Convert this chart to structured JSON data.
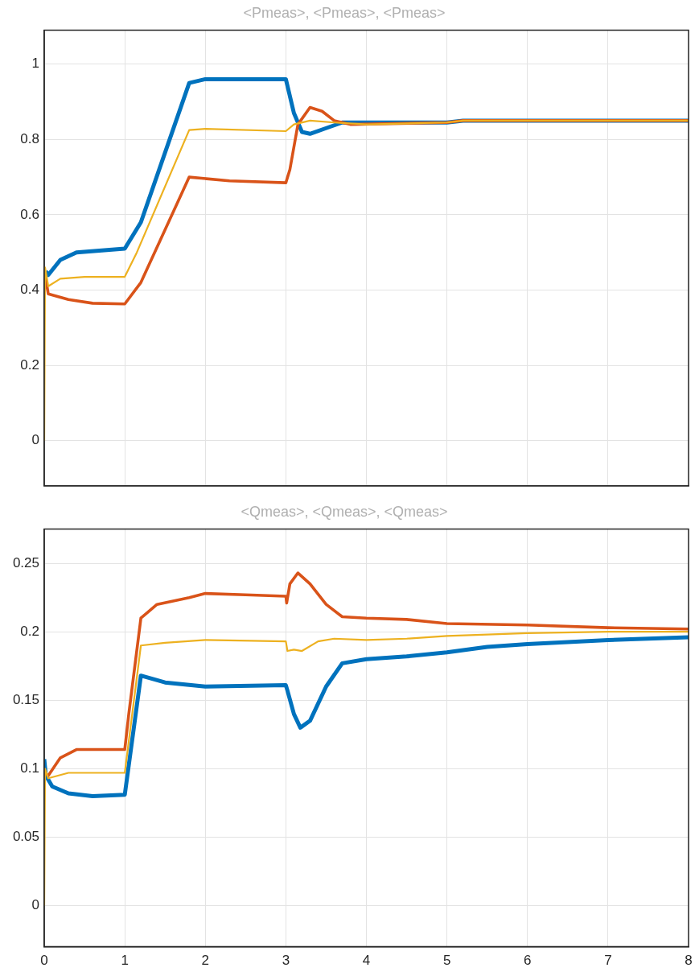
{
  "chart_data": [
    {
      "type": "line",
      "title": "<Pmeas>, <Pmeas>, <Pmeas>",
      "xlim": [
        0,
        8
      ],
      "xticks": [
        0,
        1,
        2,
        3,
        4,
        5,
        6,
        7,
        8
      ],
      "ylim": [
        -0.12,
        1.09
      ],
      "yticks": [
        0,
        0.2,
        0.4,
        0.6,
        0.8,
        1
      ],
      "grid": true,
      "legend": false,
      "tick_labels": "y",
      "marker": "none",
      "series": [
        {
          "color": "#0072bd",
          "x": [
            0.02,
            0.05,
            0.2,
            0.4,
            1.0,
            1.2,
            1.8,
            2.0,
            3.0,
            3.1,
            3.2,
            3.3,
            3.5,
            3.7,
            4,
            5,
            5.2,
            8
          ],
          "values": [
            0.45,
            0.44,
            0.48,
            0.5,
            0.51,
            0.58,
            0.95,
            0.96,
            0.96,
            0.87,
            0.82,
            0.815,
            0.83,
            0.845,
            0.845,
            0.845,
            0.85,
            0.85
          ]
        },
        {
          "color": "#d95319",
          "x": [
            0.01,
            0.05,
            0.3,
            0.6,
            1.0,
            1.2,
            1.8,
            2.3,
            3.0,
            3.05,
            3.15,
            3.3,
            3.45,
            3.6,
            3.8,
            5,
            5.2,
            8
          ],
          "values": [
            0.44,
            0.39,
            0.375,
            0.365,
            0.363,
            0.42,
            0.7,
            0.69,
            0.685,
            0.72,
            0.84,
            0.885,
            0.875,
            0.85,
            0.84,
            0.845,
            0.85,
            0.85
          ]
        },
        {
          "color": "#edb120",
          "x": [
            0,
            0.01,
            0.05,
            0.2,
            0.5,
            1.0,
            1.15,
            1.8,
            2.0,
            3.0,
            3.1,
            3.3,
            3.6,
            4,
            5,
            5.2,
            8
          ],
          "values": [
            0,
            0.46,
            0.41,
            0.43,
            0.435,
            0.435,
            0.5,
            0.825,
            0.828,
            0.822,
            0.84,
            0.85,
            0.845,
            0.84,
            0.845,
            0.85,
            0.85
          ]
        }
      ]
    },
    {
      "type": "line",
      "title": "<Qmeas>, <Qmeas>, <Qmeas>",
      "xlim": [
        0,
        8
      ],
      "xticks": [
        0,
        1,
        2,
        3,
        4,
        5,
        6,
        7,
        8
      ],
      "ylim": [
        -0.03,
        0.275
      ],
      "yticks": [
        0,
        0.05,
        0.1,
        0.15,
        0.2,
        0.25
      ],
      "grid": true,
      "legend": false,
      "marker": "none",
      "series": [
        {
          "color": "#0072bd",
          "x": [
            0,
            0.02,
            0.1,
            0.3,
            0.6,
            1.0,
            1.2,
            1.5,
            2,
            3,
            3.02,
            3.1,
            3.18,
            3.3,
            3.5,
            3.7,
            4,
            4.5,
            5,
            5.5,
            6,
            7,
            8
          ],
          "values": [
            0.107,
            0.095,
            0.087,
            0.082,
            0.08,
            0.081,
            0.168,
            0.163,
            0.16,
            0.161,
            0.157,
            0.14,
            0.13,
            0.135,
            0.16,
            0.177,
            0.18,
            0.182,
            0.185,
            0.189,
            0.191,
            0.194,
            0.196
          ]
        },
        {
          "color": "#d95319",
          "x": [
            0,
            0.05,
            0.2,
            0.4,
            1.0,
            1.05,
            1.2,
            1.4,
            1.8,
            2.0,
            2.5,
            3.0,
            3.01,
            3.05,
            3.15,
            3.3,
            3.5,
            3.7,
            4,
            4.5,
            5,
            6,
            7,
            8
          ],
          "values": [
            0.097,
            0.095,
            0.108,
            0.114,
            0.114,
            0.14,
            0.21,
            0.22,
            0.225,
            0.228,
            0.227,
            0.226,
            0.221,
            0.235,
            0.243,
            0.235,
            0.22,
            0.211,
            0.21,
            0.209,
            0.206,
            0.205,
            0.203,
            0.202
          ]
        },
        {
          "color": "#edb120",
          "x": [
            0,
            0.01,
            0.05,
            0.3,
            1.0,
            1.2,
            1.5,
            2,
            3,
            3.02,
            3.1,
            3.2,
            3.4,
            3.6,
            4,
            4.5,
            5,
            6,
            7,
            8
          ],
          "values": [
            0,
            0.1,
            0.093,
            0.097,
            0.097,
            0.19,
            0.192,
            0.194,
            0.193,
            0.186,
            0.187,
            0.186,
            0.193,
            0.195,
            0.194,
            0.195,
            0.197,
            0.199,
            0.2,
            0.2
          ]
        }
      ]
    }
  ]
}
